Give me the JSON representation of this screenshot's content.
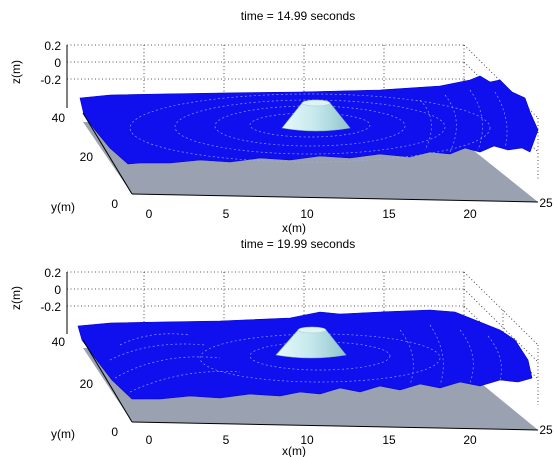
{
  "chart_data": [
    {
      "type": "surface3d",
      "title": "time = 14.99 seconds",
      "xlabel": "x(m)",
      "ylabel": "y(m)",
      "zlabel": "z(m)",
      "x_ticks": [
        0,
        5,
        10,
        15,
        20,
        25
      ],
      "y_ticks": [
        0,
        20,
        40
      ],
      "z_ticks": [
        "0.2",
        "0",
        "-0.2"
      ],
      "xlim": [
        0,
        25
      ],
      "ylim": [
        0,
        40
      ],
      "zlim": [
        -0.3,
        0.2
      ],
      "grid": true,
      "surface_color": "#1010ee",
      "island_color": "#bfe6ea",
      "floor_color": "#9aa1b0"
    },
    {
      "type": "surface3d",
      "title": "time = 19.99 seconds",
      "xlabel": "x(m)",
      "ylabel": "y(m)",
      "zlabel": "z(m)",
      "x_ticks": [
        0,
        5,
        10,
        15,
        20,
        25
      ],
      "y_ticks": [
        0,
        20,
        40
      ],
      "z_ticks": [
        "0.2",
        "0",
        "-0.2"
      ],
      "xlim": [
        0,
        25
      ],
      "ylim": [
        0,
        40
      ],
      "zlim": [
        -0.3,
        0.2
      ],
      "grid": true,
      "surface_color": "#1010ee",
      "island_color": "#bfe6ea",
      "floor_color": "#9aa1b0"
    }
  ]
}
